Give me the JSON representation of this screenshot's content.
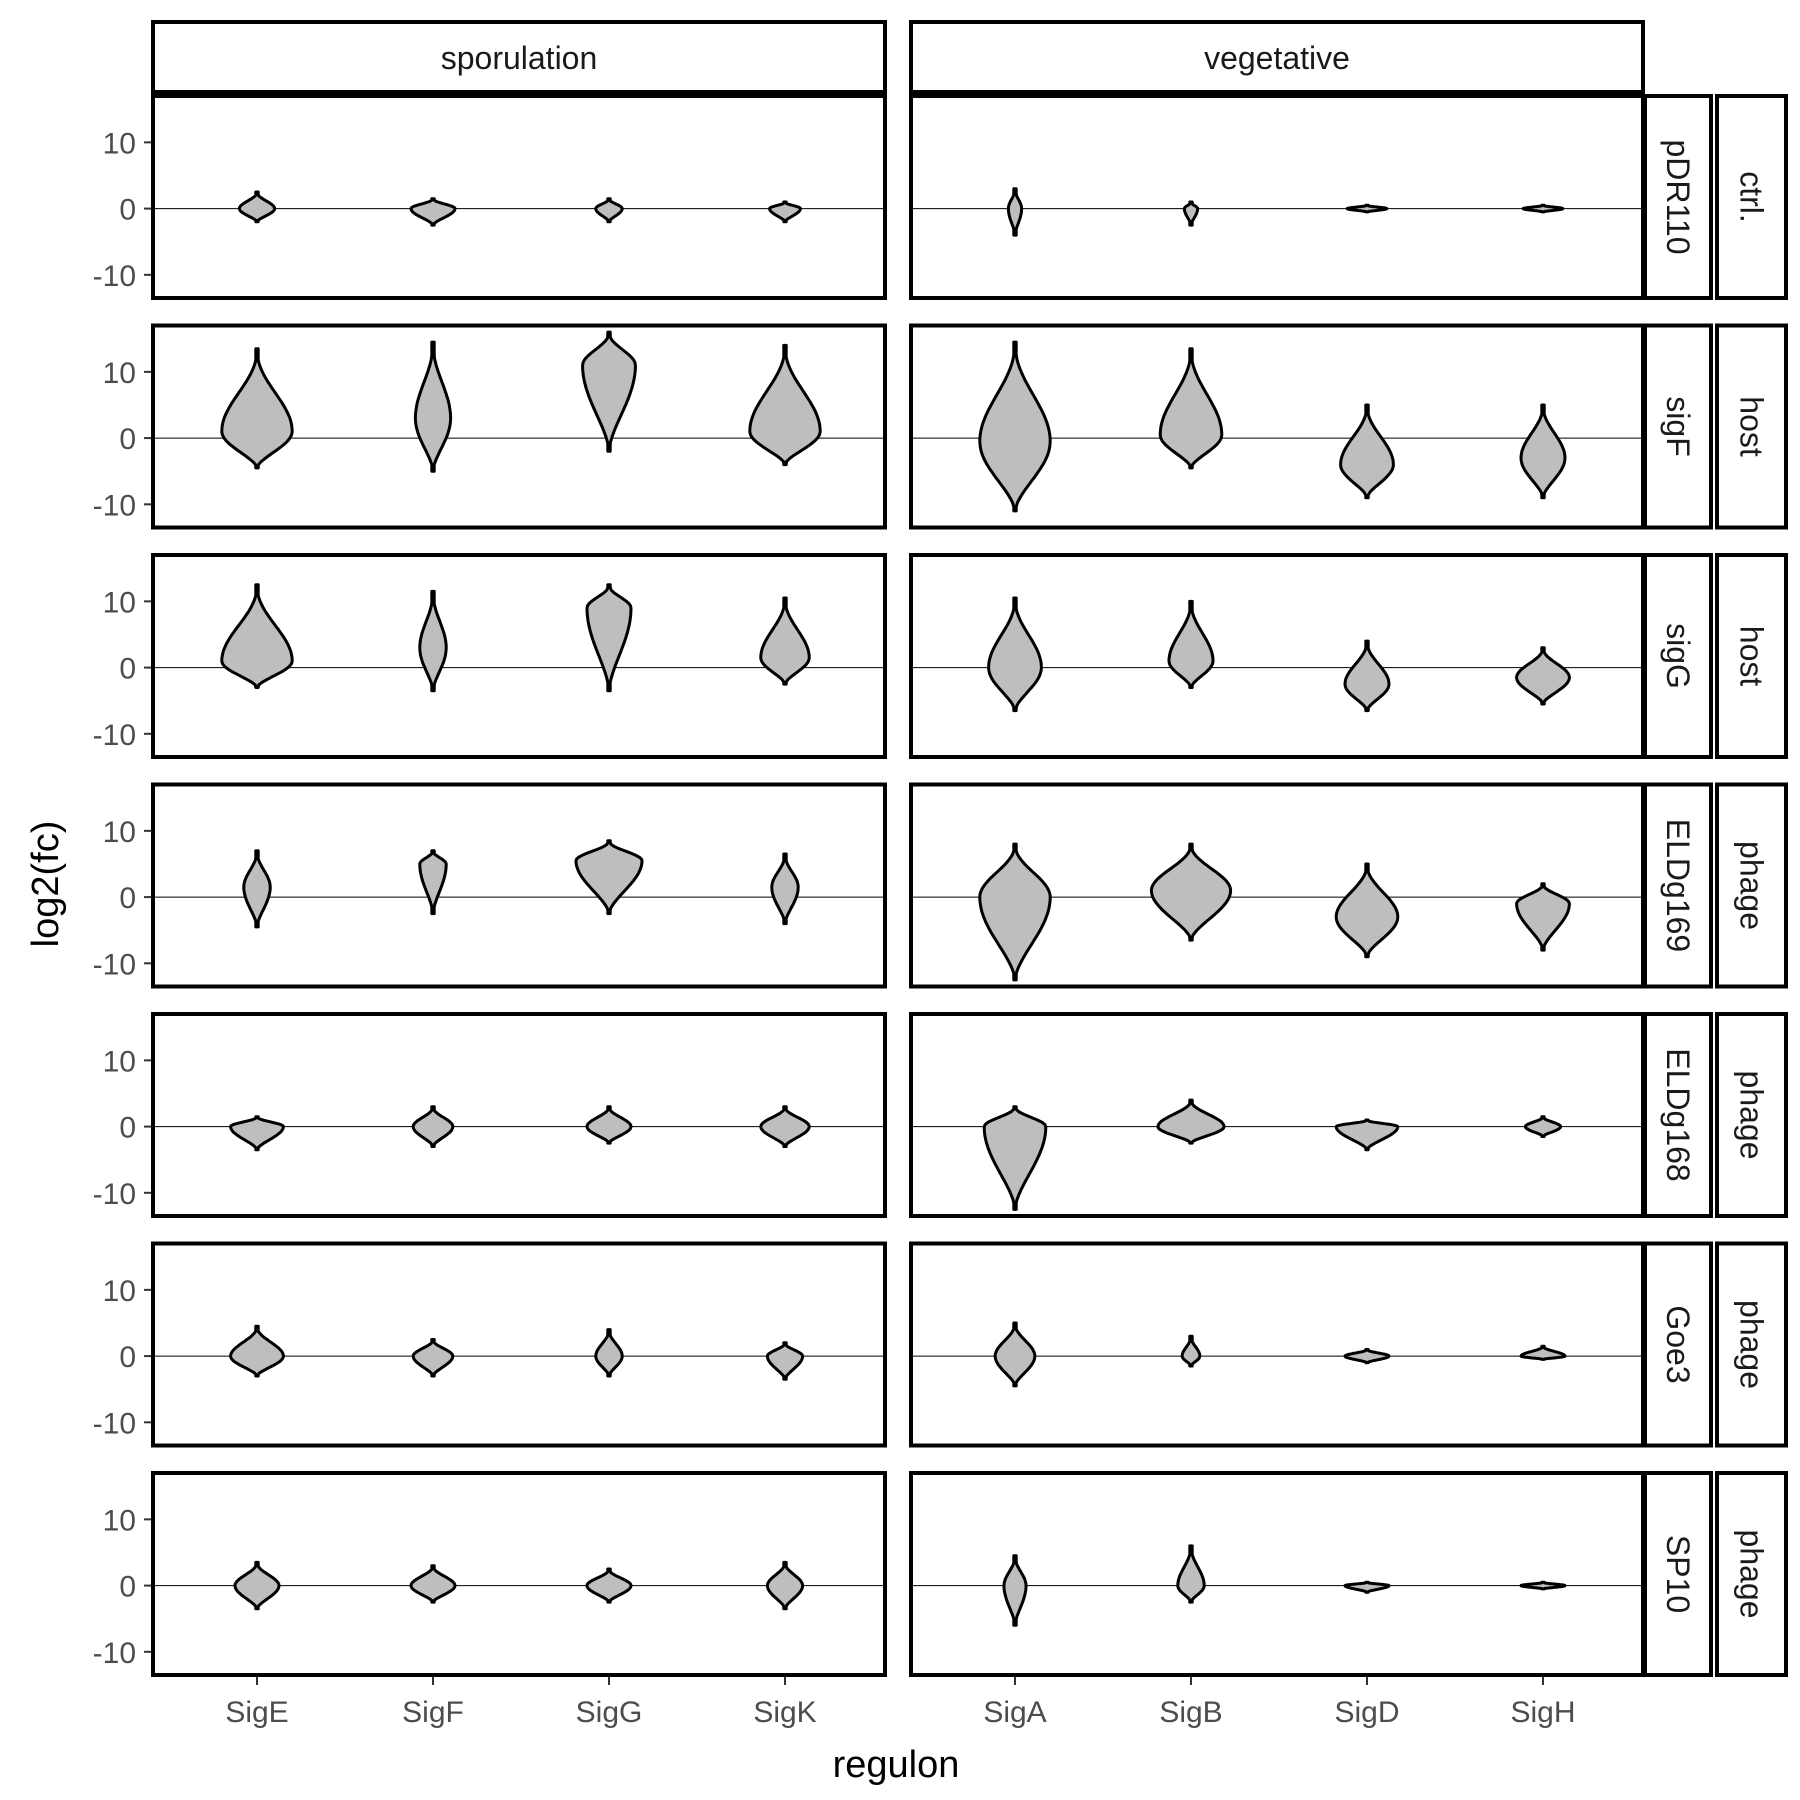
{
  "chart_data": {
    "type": "violin",
    "xlabel": "regulon",
    "ylabel": "log2(fc)",
    "ylim": [
      -13.5,
      17
    ],
    "yticks": [
      -10,
      0,
      10
    ],
    "ytick_labels": [
      "-10",
      "0",
      "10"
    ],
    "reference_line": 0,
    "grid": false,
    "fill_color": "#bebebe",
    "outline_color": "#000000",
    "column_facets": [
      {
        "label": "sporulation",
        "categories": [
          "SigE",
          "SigF",
          "SigG",
          "SigK"
        ]
      },
      {
        "label": "vegetative",
        "categories": [
          "SigA",
          "SigB",
          "SigD",
          "SigH"
        ]
      }
    ],
    "row_facets": [
      {
        "label": "pDR110",
        "group": "ctrl."
      },
      {
        "label": "sigF",
        "group": "host"
      },
      {
        "label": "sigG",
        "group": "host"
      },
      {
        "label": "ELDg169",
        "group": "phage"
      },
      {
        "label": "ELDg168",
        "group": "phage"
      },
      {
        "label": "Goe3",
        "group": "phage"
      },
      {
        "label": "SP10",
        "group": "phage"
      }
    ],
    "violins": [
      [
        [
          {
            "min": -2,
            "max": 2.5,
            "mode": 0,
            "width": 0.4
          },
          {
            "min": -2.5,
            "max": 1.5,
            "mode": 0,
            "width": 0.5
          },
          {
            "min": -2,
            "max": 1.5,
            "mode": 0,
            "width": 0.3
          },
          {
            "min": -2,
            "max": 1,
            "mode": 0,
            "width": 0.35
          }
        ],
        [
          {
            "min": -4,
            "max": 3,
            "mode": 0,
            "width": 0.15
          },
          {
            "min": -2.5,
            "max": 1,
            "mode": 0,
            "width": 0.15
          },
          {
            "min": -0.5,
            "max": 0.5,
            "mode": 0,
            "width": 0.45
          },
          {
            "min": -0.5,
            "max": 0.5,
            "mode": 0,
            "width": 0.45
          }
        ]
      ],
      [
        [
          {
            "min": -4.5,
            "max": 13.5,
            "mode": 1,
            "width": 0.8
          },
          {
            "min": -5,
            "max": 14.5,
            "mode": 3,
            "width": 0.4
          },
          {
            "min": -2,
            "max": 16,
            "mode": 11,
            "width": 0.6
          },
          {
            "min": -4,
            "max": 14,
            "mode": 1,
            "width": 0.8
          }
        ],
        [
          {
            "min": -11,
            "max": 14.5,
            "mode": -0.5,
            "width": 0.8
          },
          {
            "min": -4.5,
            "max": 13.5,
            "mode": 0.5,
            "width": 0.7
          },
          {
            "min": -9,
            "max": 5,
            "mode": -4,
            "width": 0.6
          },
          {
            "min": -9,
            "max": 5,
            "mode": -3,
            "width": 0.5
          }
        ]
      ],
      [
        [
          {
            "min": -3,
            "max": 12.5,
            "mode": 1,
            "width": 0.8
          },
          {
            "min": -3.5,
            "max": 11.5,
            "mode": 3,
            "width": 0.3
          },
          {
            "min": -3.5,
            "max": 12.5,
            "mode": 9,
            "width": 0.5
          },
          {
            "min": -2.5,
            "max": 10.5,
            "mode": 1.5,
            "width": 0.55
          }
        ],
        [
          {
            "min": -6.5,
            "max": 10.5,
            "mode": 0,
            "width": 0.6
          },
          {
            "min": -3,
            "max": 10,
            "mode": 1,
            "width": 0.5
          },
          {
            "min": -6.5,
            "max": 4,
            "mode": -2.5,
            "width": 0.5
          },
          {
            "min": -5.5,
            "max": 3,
            "mode": -1.5,
            "width": 0.6
          }
        ]
      ],
      [
        [
          {
            "min": -4.5,
            "max": 7,
            "mode": 1.5,
            "width": 0.3
          },
          {
            "min": -2.5,
            "max": 7,
            "mode": 5,
            "width": 0.3
          },
          {
            "min": -2.5,
            "max": 8.5,
            "mode": 5.5,
            "width": 0.75
          },
          {
            "min": -4,
            "max": 6.5,
            "mode": 1.5,
            "width": 0.3
          }
        ],
        [
          {
            "min": -12.5,
            "max": 8,
            "mode": 0,
            "width": 0.8
          },
          {
            "min": -6.5,
            "max": 8,
            "mode": 1,
            "width": 0.9
          },
          {
            "min": -9,
            "max": 5,
            "mode": -3,
            "width": 0.7
          },
          {
            "min": -8,
            "max": 2,
            "mode": -1,
            "width": 0.6
          }
        ]
      ],
      [
        [
          {
            "min": -3.5,
            "max": 1.5,
            "mode": 0,
            "width": 0.6
          },
          {
            "min": -3,
            "max": 3,
            "mode": 0,
            "width": 0.45
          },
          {
            "min": -2.5,
            "max": 3,
            "mode": 0,
            "width": 0.5
          },
          {
            "min": -3,
            "max": 3,
            "mode": 0,
            "width": 0.55
          }
        ],
        [
          {
            "min": -12.5,
            "max": 3,
            "mode": 0,
            "width": 0.7
          },
          {
            "min": -2.5,
            "max": 4,
            "mode": 0,
            "width": 0.75
          },
          {
            "min": -3.5,
            "max": 1,
            "mode": 0,
            "width": 0.7
          },
          {
            "min": -1.5,
            "max": 1.5,
            "mode": 0,
            "width": 0.4
          }
        ]
      ],
      [
        [
          {
            "min": -3,
            "max": 4.5,
            "mode": 0,
            "width": 0.6
          },
          {
            "min": -3,
            "max": 2.5,
            "mode": 0,
            "width": 0.45
          },
          {
            "min": -3,
            "max": 4,
            "mode": 0,
            "width": 0.3
          },
          {
            "min": -3.5,
            "max": 2,
            "mode": 0,
            "width": 0.4
          }
        ],
        [
          {
            "min": -4.5,
            "max": 5,
            "mode": 0,
            "width": 0.45
          },
          {
            "min": -1.5,
            "max": 3,
            "mode": 0,
            "width": 0.2
          },
          {
            "min": -1,
            "max": 1,
            "mode": 0,
            "width": 0.5
          },
          {
            "min": -0.5,
            "max": 1.5,
            "mode": 0,
            "width": 0.5
          }
        ]
      ],
      [
        [
          {
            "min": -3.5,
            "max": 3.5,
            "mode": 0,
            "width": 0.5
          },
          {
            "min": -2.5,
            "max": 3,
            "mode": 0,
            "width": 0.5
          },
          {
            "min": -2.5,
            "max": 2.5,
            "mode": 0,
            "width": 0.5
          },
          {
            "min": -3.5,
            "max": 3.5,
            "mode": 0,
            "width": 0.4
          }
        ],
        [
          {
            "min": -6,
            "max": 4.5,
            "mode": 0,
            "width": 0.25
          },
          {
            "min": -2.5,
            "max": 6,
            "mode": 0,
            "width": 0.3
          },
          {
            "min": -1,
            "max": 0.5,
            "mode": 0,
            "width": 0.5
          },
          {
            "min": -0.5,
            "max": 0.5,
            "mode": 0,
            "width": 0.5
          }
        ]
      ]
    ]
  }
}
